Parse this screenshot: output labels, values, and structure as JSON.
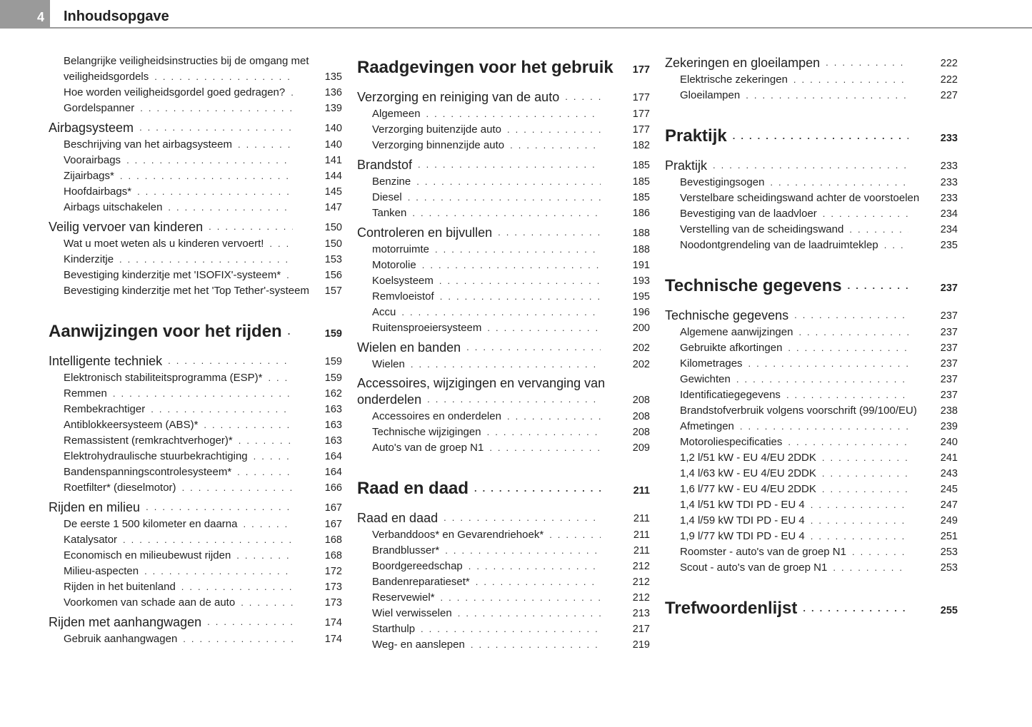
{
  "header": {
    "page_number": "4",
    "title": "Inhoudsopgave"
  },
  "columns": [
    [
      {
        "t": "item",
        "line1": "Belangrijke veiligheidsinstructies bij de omgang met",
        "text": "veiligheidsgordels",
        "p": "135"
      },
      {
        "t": "item",
        "text": "Hoe worden veiligheidsgordel goed gedragen?",
        "p": "136"
      },
      {
        "t": "item",
        "text": "Gordelspanner",
        "p": "139"
      },
      {
        "t": "h2",
        "text": "Airbagsysteem",
        "p": "140"
      },
      {
        "t": "item",
        "text": "Beschrijving van het airbagsysteem",
        "p": "140"
      },
      {
        "t": "item",
        "text": "Voorairbags",
        "p": "141"
      },
      {
        "t": "item",
        "text": "Zijairbags*",
        "p": "144"
      },
      {
        "t": "item",
        "text": "Hoofdairbags*",
        "p": "145"
      },
      {
        "t": "item",
        "text": "Airbags uitschakelen",
        "p": "147"
      },
      {
        "t": "h2",
        "text": "Veilig vervoer van kinderen",
        "p": "150"
      },
      {
        "t": "item",
        "text": "Wat u moet weten als u kinderen vervoert!",
        "p": "150"
      },
      {
        "t": "item",
        "text": "Kinderzitje",
        "p": "153"
      },
      {
        "t": "item",
        "text": "Bevestiging kinderzitje met 'ISOFIX'-systeem*",
        "p": "156"
      },
      {
        "t": "item",
        "text": "Bevestiging kinderzitje met het 'Top Tether'-systeem",
        "p": "157"
      },
      {
        "t": "h1",
        "text": "Aanwijzingen voor het rijden",
        "p": "159"
      },
      {
        "t": "h2",
        "text": "Intelligente techniek",
        "p": "159"
      },
      {
        "t": "item",
        "text": "Elektronisch stabiliteitsprogramma (ESP)*",
        "p": "159"
      },
      {
        "t": "item",
        "text": "Remmen",
        "p": "162"
      },
      {
        "t": "item",
        "text": "Rembekrachtiger",
        "p": "163"
      },
      {
        "t": "item",
        "text": "Antiblokkeersysteem (ABS)*",
        "p": "163"
      },
      {
        "t": "item",
        "text": "Remassistent (remkrachtverhoger)*",
        "p": "163"
      },
      {
        "t": "item",
        "text": "Elektrohydraulische stuurbekrachtiging",
        "p": "164"
      },
      {
        "t": "item",
        "text": "Bandenspanningscontrolesysteem*",
        "p": "164"
      },
      {
        "t": "item",
        "text": "Roetfilter* (dieselmotor)",
        "p": "166"
      },
      {
        "t": "h2",
        "text": "Rijden en milieu",
        "p": "167"
      },
      {
        "t": "item",
        "text": "De eerste 1 500 kilometer en daarna",
        "p": "167"
      },
      {
        "t": "item",
        "text": "Katalysator",
        "p": "168"
      },
      {
        "t": "item",
        "text": "Economisch en milieubewust rijden",
        "p": "168"
      },
      {
        "t": "item",
        "text": "Milieu-aspecten",
        "p": "172"
      },
      {
        "t": "item",
        "text": "Rijden in het buitenland",
        "p": "173"
      },
      {
        "t": "item",
        "text": "Voorkomen van schade aan de auto",
        "p": "173"
      },
      {
        "t": "h2",
        "text": "Rijden met aanhangwagen",
        "p": "174"
      },
      {
        "t": "item",
        "text": "Gebruik aanhangwagen",
        "p": "174"
      }
    ],
    [
      {
        "t": "h1",
        "text": "Raadgevingen voor het gebruik",
        "p": "177"
      },
      {
        "t": "h2",
        "text": "Verzorging en reiniging van de auto",
        "p": "177"
      },
      {
        "t": "item",
        "text": "Algemeen",
        "p": "177"
      },
      {
        "t": "item",
        "text": "Verzorging buitenzijde auto",
        "p": "177"
      },
      {
        "t": "item",
        "text": "Verzorging binnenzijde auto",
        "p": "182"
      },
      {
        "t": "h2",
        "text": "Brandstof",
        "p": "185"
      },
      {
        "t": "item",
        "text": "Benzine",
        "p": "185"
      },
      {
        "t": "item",
        "text": "Diesel",
        "p": "185"
      },
      {
        "t": "item",
        "text": "Tanken",
        "p": "186"
      },
      {
        "t": "h2",
        "text": "Controleren en bijvullen",
        "p": "188"
      },
      {
        "t": "item",
        "text": "motorruimte",
        "p": "188"
      },
      {
        "t": "item",
        "text": "Motorolie",
        "p": "191"
      },
      {
        "t": "item",
        "text": "Koelsysteem",
        "p": "193"
      },
      {
        "t": "item",
        "text": "Remvloeistof",
        "p": "195"
      },
      {
        "t": "item",
        "text": "Accu",
        "p": "196"
      },
      {
        "t": "item",
        "text": "Ruitensproeiersysteem",
        "p": "200"
      },
      {
        "t": "h2",
        "text": "Wielen en banden",
        "p": "202"
      },
      {
        "t": "item",
        "text": "Wielen",
        "p": "202"
      },
      {
        "t": "h2",
        "line1": "Accessoires, wijzigingen en vervanging van",
        "text": "onderdelen",
        "p": "208"
      },
      {
        "t": "item",
        "text": "Accessoires en onderdelen",
        "p": "208"
      },
      {
        "t": "item",
        "text": "Technische wijzigingen",
        "p": "208"
      },
      {
        "t": "item",
        "text": "Auto's van de groep N1",
        "p": "209"
      },
      {
        "t": "h1",
        "text": "Raad en daad",
        "p": "211"
      },
      {
        "t": "h2",
        "text": "Raad en daad",
        "p": "211"
      },
      {
        "t": "item",
        "text": "Verbanddoos* en Gevarendriehoek*",
        "p": "211"
      },
      {
        "t": "item",
        "text": "Brandblusser*",
        "p": "211"
      },
      {
        "t": "item",
        "text": "Boordgereedschap",
        "p": "212"
      },
      {
        "t": "item",
        "text": "Bandenreparatieset*",
        "p": "212"
      },
      {
        "t": "item",
        "text": "Reservewiel*",
        "p": "212"
      },
      {
        "t": "item",
        "text": "Wiel verwisselen",
        "p": "213"
      },
      {
        "t": "item",
        "text": "Starthulp",
        "p": "217"
      },
      {
        "t": "item",
        "text": "Weg- en aanslepen",
        "p": "219"
      }
    ],
    [
      {
        "t": "h2",
        "text": "Zekeringen en gloeilampen",
        "p": "222"
      },
      {
        "t": "item",
        "text": "Elektrische zekeringen",
        "p": "222"
      },
      {
        "t": "item",
        "text": "Gloeilampen",
        "p": "227"
      },
      {
        "t": "h1",
        "text": "Praktijk",
        "p": "233"
      },
      {
        "t": "h2",
        "text": "Praktijk",
        "p": "233"
      },
      {
        "t": "item",
        "text": "Bevestigingsogen",
        "p": "233"
      },
      {
        "t": "item",
        "text": "Verstelbare scheidingswand achter de voorstoelen",
        "p": "233"
      },
      {
        "t": "item",
        "text": "Bevestiging van de laadvloer",
        "p": "234"
      },
      {
        "t": "item",
        "text": "Verstelling van de scheidingswand",
        "p": "234"
      },
      {
        "t": "item",
        "text": "Noodontgrendeling van de laadruimteklep",
        "p": "235"
      },
      {
        "t": "h1",
        "text": "Technische gegevens",
        "p": "237"
      },
      {
        "t": "h2",
        "text": "Technische gegevens",
        "p": "237"
      },
      {
        "t": "item",
        "text": "Algemene aanwijzingen",
        "p": "237"
      },
      {
        "t": "item",
        "text": "Gebruikte afkortingen",
        "p": "237"
      },
      {
        "t": "item",
        "text": "Kilometrages",
        "p": "237"
      },
      {
        "t": "item",
        "text": "Gewichten",
        "p": "237"
      },
      {
        "t": "item",
        "text": "Identificatiegegevens",
        "p": "237"
      },
      {
        "t": "item",
        "text": "Brandstofverbruik volgens voorschrift (99/100/EU)",
        "p": "238"
      },
      {
        "t": "item",
        "text": "Afmetingen",
        "p": "239"
      },
      {
        "t": "item",
        "text": "Motoroliespecificaties",
        "p": "240"
      },
      {
        "t": "item",
        "text": "1,2 l/51 kW - EU 4/EU 2DDK",
        "p": "241"
      },
      {
        "t": "item",
        "text": "1,4 l/63 kW - EU 4/EU 2DDK",
        "p": "243"
      },
      {
        "t": "item",
        "text": "1,6 l/77 kW - EU 4/EU 2DDK",
        "p": "245"
      },
      {
        "t": "item",
        "text": "1,4 l/51 kW TDI PD - EU 4",
        "p": "247"
      },
      {
        "t": "item",
        "text": "1,4 l/59 kW TDI PD - EU 4",
        "p": "249"
      },
      {
        "t": "item",
        "text": "1,9 l/77 kW TDI PD - EU 4",
        "p": "251"
      },
      {
        "t": "item",
        "text": "Roomster - auto's van de groep N1",
        "p": "253"
      },
      {
        "t": "item",
        "text": "Scout - auto's van de groep N1",
        "p": "253"
      },
      {
        "t": "h1",
        "text": "Trefwoordenlijst",
        "p": "255"
      }
    ]
  ]
}
